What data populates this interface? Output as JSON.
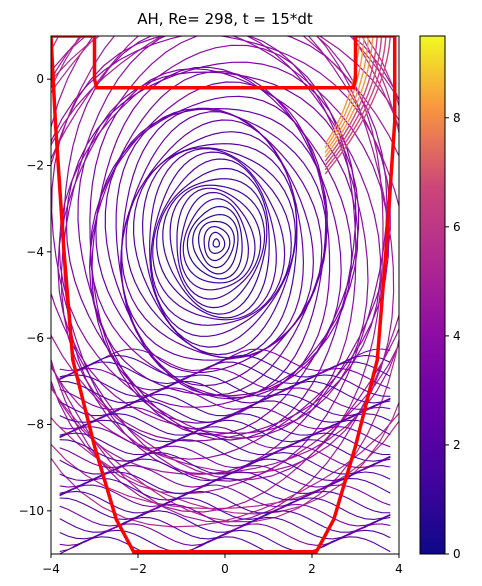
{
  "chart_data": {
    "type": "streamplot",
    "title": "AH, Re= 298, t =  15*dt",
    "xlabel": "",
    "ylabel": "",
    "xlim": [
      -4,
      4
    ],
    "ylim": [
      -11,
      1
    ],
    "xticks": [
      -4,
      -2,
      0,
      2,
      4
    ],
    "yticks": [
      0,
      -2,
      -4,
      -6,
      -8,
      -10
    ],
    "xtick_labels": [
      "−4",
      "−2",
      "0",
      "2",
      "4"
    ],
    "ytick_labels": [
      "0",
      "−2",
      "−4",
      "−6",
      "−8",
      "−10"
    ],
    "colorbar": {
      "min": 0,
      "max": 9.5,
      "ticks": [
        0,
        2,
        4,
        6,
        8
      ],
      "tick_labels": [
        "0",
        "2",
        "4",
        "6",
        "8"
      ],
      "colormap": "plasma"
    },
    "vortex_center": {
      "x": -0.2,
      "y": -3.8
    },
    "boundary_color": "#ff0000",
    "boundary": [
      [
        -4,
        1
      ],
      [
        -3,
        1
      ],
      [
        -3,
        0
      ],
      [
        -2.95,
        -0.2
      ],
      [
        2.95,
        -0.2
      ],
      [
        3,
        0
      ],
      [
        3,
        1
      ],
      [
        3.9,
        1
      ],
      [
        3.9,
        -1
      ],
      [
        3.7,
        -4
      ],
      [
        3.5,
        -6.5
      ],
      [
        3.0,
        -8.5
      ],
      [
        2.5,
        -10.2
      ],
      [
        2.1,
        -10.95
      ],
      [
        -2.1,
        -10.95
      ],
      [
        -2.5,
        -10.2
      ],
      [
        -3.0,
        -8.5
      ],
      [
        -3.5,
        -6.5
      ],
      [
        -3.7,
        -4
      ],
      [
        -3.9,
        -1
      ],
      [
        -4,
        1
      ]
    ]
  }
}
